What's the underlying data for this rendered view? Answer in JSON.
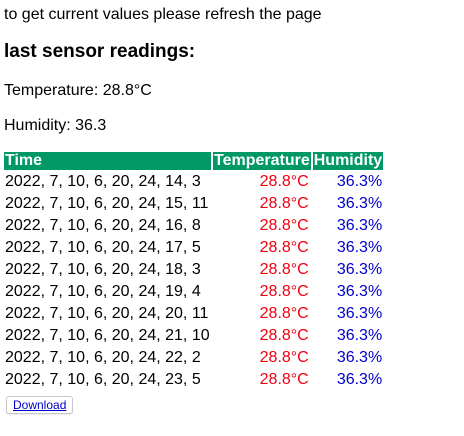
{
  "notice": "to get current values please refresh the page",
  "heading": "last sensor readings:",
  "current": {
    "temperature": "Temperature: 28.8°C",
    "humidity": "Humidity: 36.3"
  },
  "table": {
    "headers": [
      "Time",
      "Temperature",
      "Humidity"
    ],
    "rows": [
      [
        "2022, 7, 10, 6, 20, 24, 14, 3",
        "28.8°C",
        "36.3%"
      ],
      [
        "2022, 7, 10, 6, 20, 24, 15, 11",
        "28.8°C",
        "36.3%"
      ],
      [
        "2022, 7, 10, 6, 20, 24, 16, 8",
        "28.8°C",
        "36.3%"
      ],
      [
        "2022, 7, 10, 6, 20, 24, 17, 5",
        "28.8°C",
        "36.3%"
      ],
      [
        "2022, 7, 10, 6, 20, 24, 18, 3",
        "28.8°C",
        "36.3%"
      ],
      [
        "2022, 7, 10, 6, 20, 24, 19, 4",
        "28.8°C",
        "36.3%"
      ],
      [
        "2022, 7, 10, 6, 20, 24, 20, 11",
        "28.8°C",
        "36.3%"
      ],
      [
        "2022, 7, 10, 6, 20, 24, 21, 10",
        "28.8°C",
        "36.3%"
      ],
      [
        "2022, 7, 10, 6, 20, 24, 22, 2",
        "28.8°C",
        "36.3%"
      ],
      [
        "2022, 7, 10, 6, 20, 24, 23, 5",
        "28.8°C",
        "36.3%"
      ]
    ]
  },
  "download_label": "Download",
  "colors": {
    "header_bg": "#009966",
    "temperature_text": "#ee0011",
    "humidity_text": "#0000cc",
    "link": "#0000cc"
  }
}
